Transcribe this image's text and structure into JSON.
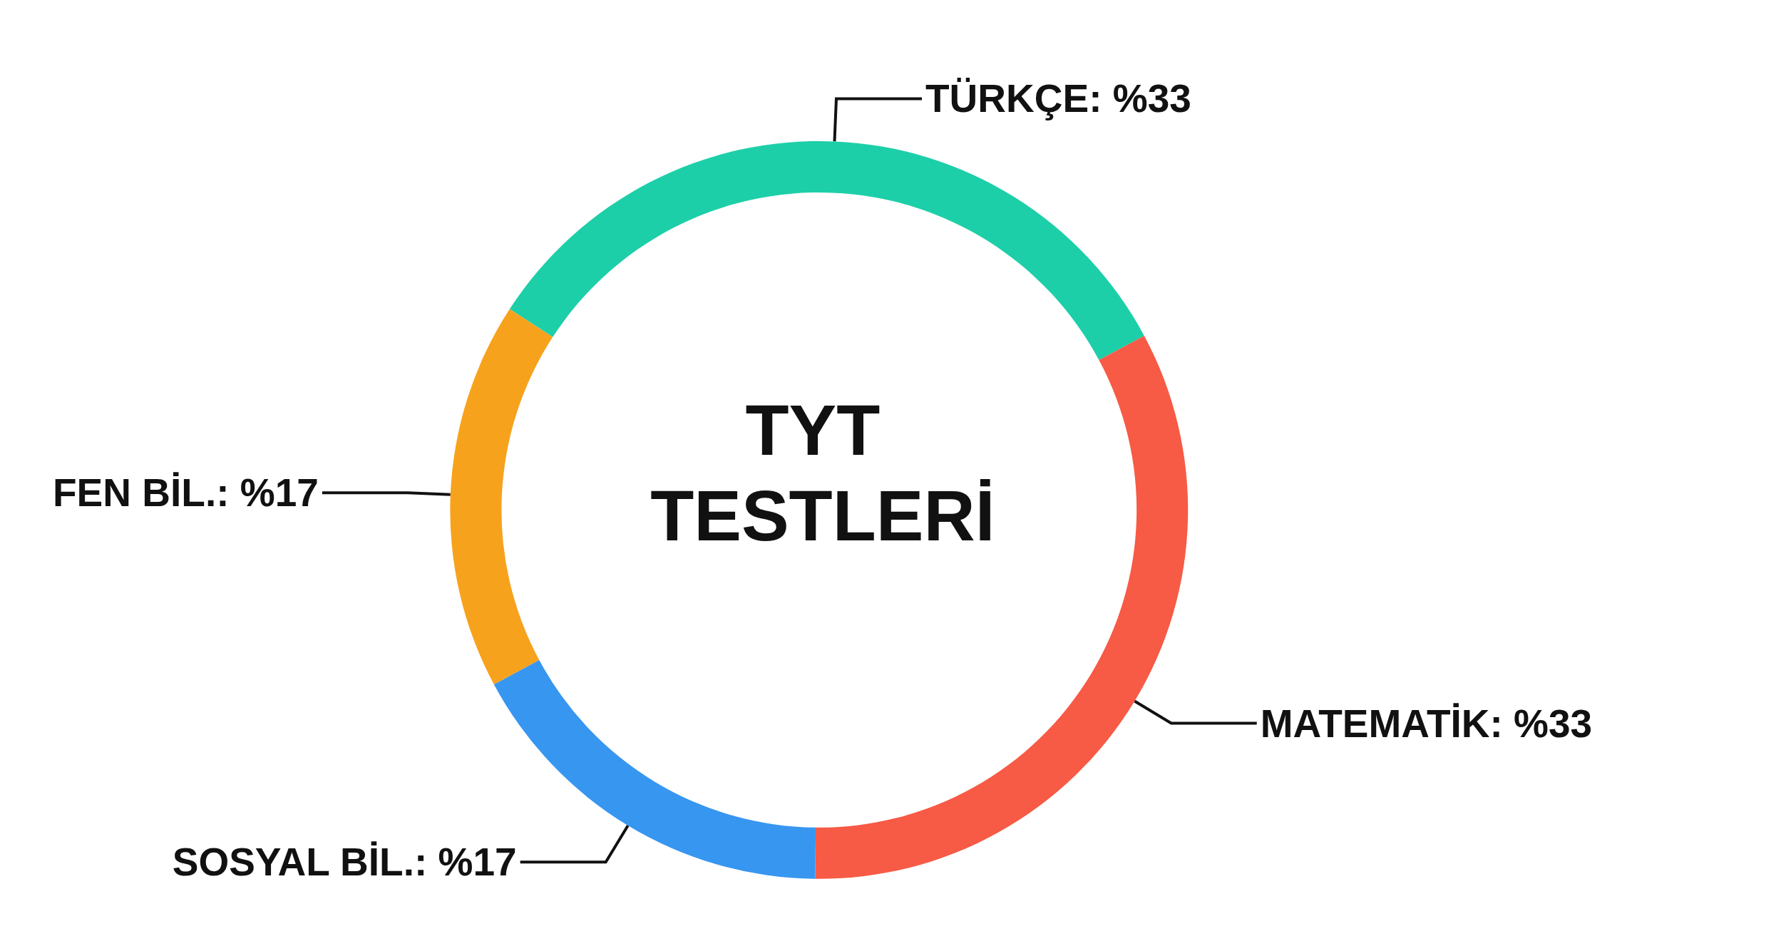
{
  "chart_data": {
    "type": "donut",
    "title": "TYT TESTLERİ",
    "categories": [
      "TÜRKÇE",
      "MATEMATİK",
      "SOSYAL BİL.",
      "FEN BİL."
    ],
    "values": [
      33,
      33,
      17,
      17
    ],
    "value_labels": [
      "%33",
      "%33",
      "%17",
      "%17"
    ],
    "colors": [
      "#1dcfa8",
      "#f75a45",
      "#3796f0",
      "#f7a21c"
    ],
    "legend": false
  }
}
